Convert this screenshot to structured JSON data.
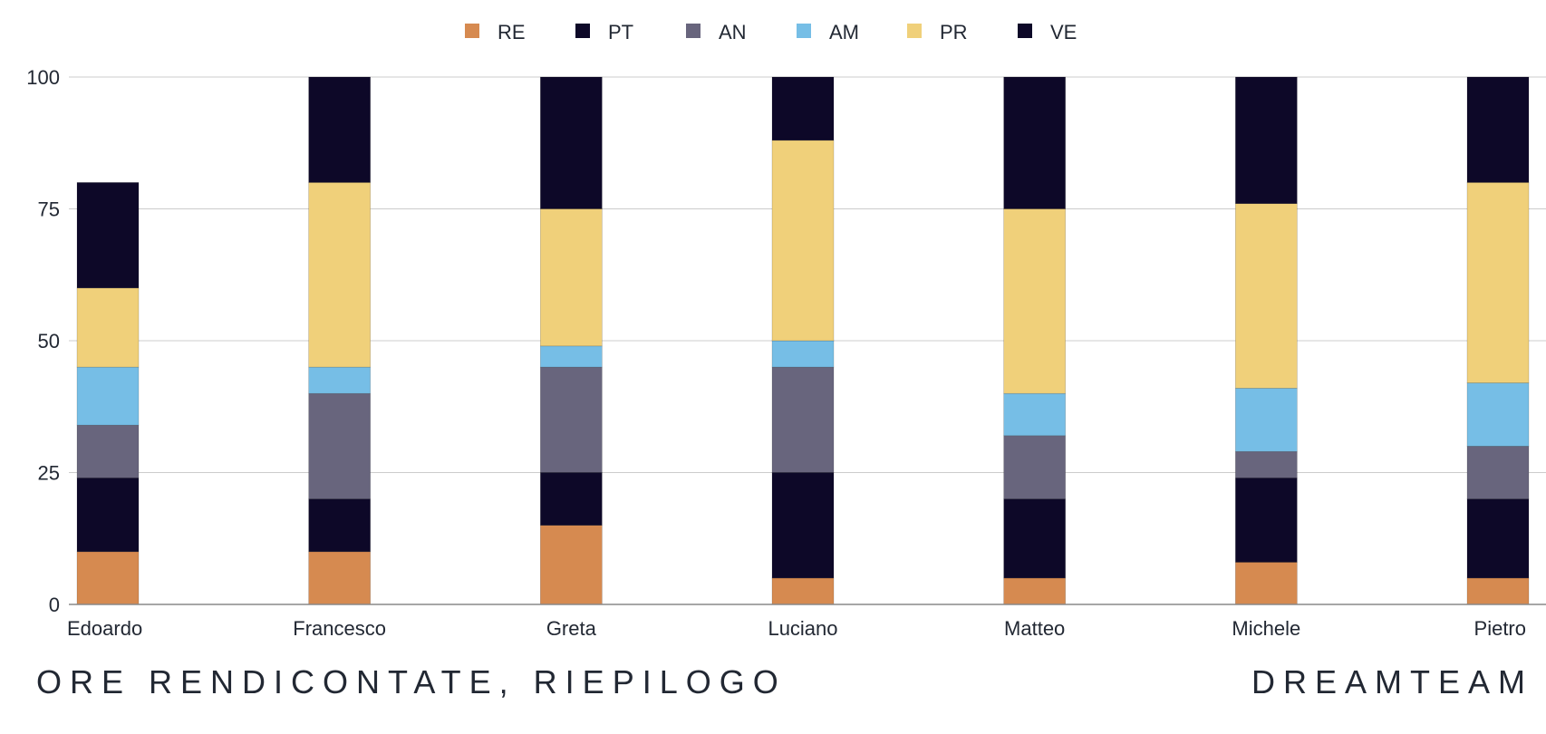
{
  "chart_data": {
    "type": "bar",
    "stacked": true,
    "categories": [
      "Edoardo",
      "Francesco",
      "Greta",
      "Luciano",
      "Matteo",
      "Michele",
      "Pietro"
    ],
    "series": [
      {
        "name": "RE",
        "color": "#D68A50",
        "values": [
          10,
          10,
          15,
          5,
          5,
          8,
          5
        ]
      },
      {
        "name": "PT",
        "color": "#0D0828",
        "values": [
          14,
          10,
          10,
          20,
          15,
          16,
          15
        ]
      },
      {
        "name": "AN",
        "color": "#68657D",
        "values": [
          10,
          20,
          20,
          20,
          12,
          5,
          10
        ]
      },
      {
        "name": "AM",
        "color": "#76BEE6",
        "values": [
          11,
          5,
          4,
          5,
          8,
          12,
          12
        ]
      },
      {
        "name": "PR",
        "color": "#F0D07A",
        "values": [
          15,
          35,
          26,
          38,
          35,
          35,
          38
        ]
      },
      {
        "name": "VE",
        "color": "#0D0828",
        "values": [
          20,
          20,
          25,
          12,
          25,
          24,
          20
        ]
      }
    ],
    "yticks": [
      0,
      25,
      50,
      75,
      100
    ],
    "ylim": [
      0,
      100
    ],
    "grid": true,
    "legend_position": "top"
  },
  "footer": {
    "title": "ORE RENDICONTATE, RIEPILOGO",
    "team": "DREAMTEAM"
  }
}
